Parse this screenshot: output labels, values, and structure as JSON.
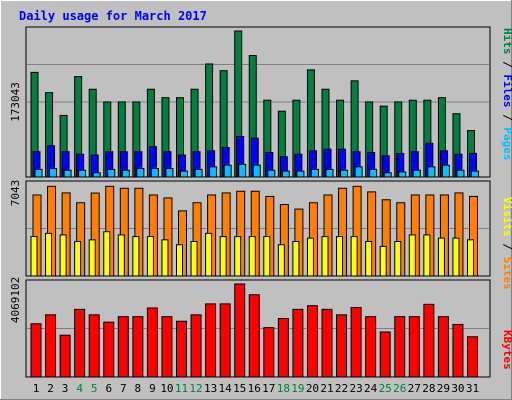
{
  "chart_data": {
    "type": "bar",
    "title": "Daily usage for March 2017",
    "colors": {
      "hits": "#008040",
      "files": "#0000ff",
      "pages": "#00c0ff",
      "visits": "#ffff00",
      "sites": "#ff8000",
      "kbytes": "#ff0000",
      "title": "#0000ff",
      "weekend_label": "#008040",
      "weekday_label": "#000000",
      "background": "#c0c0c0"
    },
    "categories": [
      "1",
      "2",
      "3",
      "4",
      "5",
      "6",
      "7",
      "8",
      "9",
      "10",
      "11",
      "12",
      "13",
      "14",
      "15",
      "16",
      "17",
      "18",
      "19",
      "20",
      "21",
      "22",
      "23",
      "24",
      "25",
      "26",
      "27",
      "28",
      "29",
      "30",
      "31"
    ],
    "weekend_days": [
      "4",
      "5",
      "11",
      "12",
      "18",
      "19",
      "25",
      "26"
    ],
    "panels": [
      {
        "key": "top",
        "scale_label": "173043",
        "ylim": [
          0,
          173043
        ],
        "legend": [
          {
            "text": "Hits",
            "color": "#008040"
          },
          {
            "text": " / ",
            "color": "#000000"
          },
          {
            "text": "Files",
            "color": "#0000ff"
          },
          {
            "text": " / ",
            "color": "#000000"
          },
          {
            "text": "Pages",
            "color": "#00c0ff"
          }
        ],
        "series": [
          {
            "name": "Hits",
            "color": "#008040",
            "values": [
              124000,
              100000,
              73000,
              119000,
              104000,
              89000,
              89000,
              89000,
              104000,
              94000,
              94000,
              104000,
              134000,
              126000,
              173043,
              144000,
              91000,
              78000,
              91000,
              127000,
              104000,
              91000,
              114000,
              89000,
              84000,
              89000,
              91000,
              91000,
              94000,
              75000,
              55000
            ]
          },
          {
            "name": "Files",
            "color": "#0000ff",
            "values": [
              30000,
              37000,
              30000,
              27000,
              26000,
              30000,
              30000,
              30000,
              36000,
              30000,
              26000,
              30000,
              31000,
              35000,
              48000,
              46000,
              29000,
              24000,
              27000,
              31000,
              33000,
              33000,
              30000,
              29000,
              25000,
              28000,
              30000,
              40000,
              31000,
              27000,
              28000
            ]
          },
          {
            "name": "Pages",
            "color": "#00c0ff",
            "values": [
              9000,
              10000,
              8000,
              8000,
              5000,
              9000,
              8000,
              10000,
              10000,
              10000,
              7000,
              9000,
              12000,
              14000,
              15000,
              14000,
              8000,
              7000,
              7000,
              9000,
              9000,
              8000,
              12000,
              9000,
              5000,
              6000,
              8000,
              12000,
              14000,
              8000,
              7000
            ]
          }
        ]
      },
      {
        "key": "middle",
        "scale_label": "7043",
        "ylim": [
          0,
          7043
        ],
        "legend": [
          {
            "text": "Visits",
            "color": "#ffff00"
          },
          {
            "text": " / ",
            "color": "#000000"
          },
          {
            "text": "Sites",
            "color": "#ff8000"
          }
        ],
        "series": [
          {
            "name": "Sites",
            "color": "#ff8000",
            "values": [
              6270,
              6940,
              6430,
              5670,
              6420,
              6940,
              6790,
              6790,
              6270,
              6040,
              5040,
              5670,
              6270,
              6430,
              6560,
              6560,
              6160,
              5530,
              5180,
              5670,
              6270,
              6790,
              6940,
              6510,
              5900,
              5670,
              6270,
              6270,
              6270,
              6430,
              6160
            ]
          },
          {
            "name": "Visits",
            "color": "#ffff00",
            "values": [
              3050,
              3300,
              3180,
              2670,
              2800,
              3430,
              3180,
              3050,
              3050,
              2800,
              2420,
              2670,
              3300,
              3050,
              3050,
              3050,
              3050,
              2420,
              2670,
              2930,
              3050,
              3050,
              3050,
              2670,
              2290,
              2670,
              3180,
              3180,
              2930,
              2930,
              2800
            ]
          }
        ]
      },
      {
        "key": "bottom",
        "scale_label": "4069102",
        "ylim": [
          0,
          4069102
        ],
        "legend": [
          {
            "text": "KBytes",
            "color": "#ff0000"
          }
        ],
        "series": [
          {
            "name": "KBytes",
            "color": "#ff0000",
            "values": [
              2330000,
              2720000,
              1830000,
              2960000,
              2720000,
              2400000,
              2640000,
              2640000,
              3020000,
              2640000,
              2440000,
              2720000,
              3200000,
              3200000,
              4069102,
              3600000,
              2160000,
              2560000,
              2960000,
              3120000,
              2960000,
              2720000,
              3040000,
              2640000,
              1970000,
              2640000,
              2640000,
              3180000,
              2640000,
              2300000,
              1760000
            ]
          }
        ]
      }
    ]
  }
}
